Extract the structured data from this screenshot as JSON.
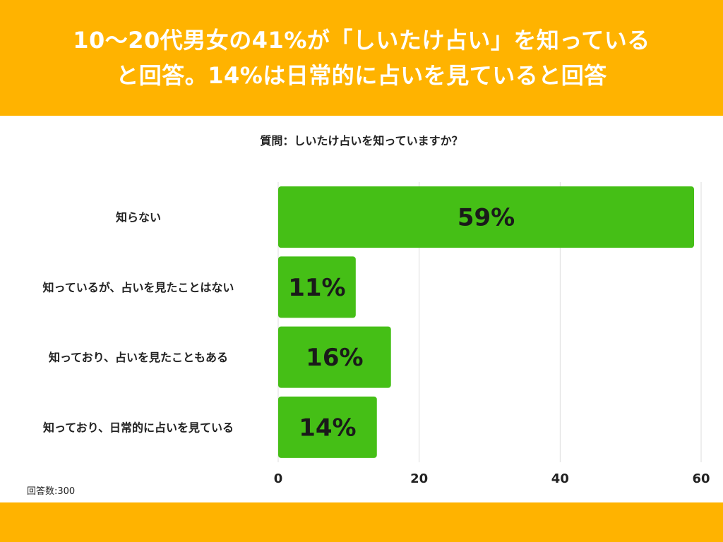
{
  "colors": {
    "banner": "#FFB300",
    "bar": "#45BF16",
    "grid": "#DDDDDD"
  },
  "header": {
    "line1": "10〜20代男女の41%が「しいたけ占い」を知っている",
    "line2": "と回答。14%は日常的に占いを見ていると回答"
  },
  "chart_data": {
    "type": "bar",
    "orientation": "horizontal",
    "title": "質問：しいたけ占いを知っていますか？",
    "categories": [
      "知らない",
      "知っているが、占いを見たことはない",
      "知っており、占いを見たこともある",
      "知っており、日常的に占いを見ている"
    ],
    "values": [
      59,
      11,
      16,
      14
    ],
    "value_labels": [
      "59%",
      "11%",
      "16%",
      "14%"
    ],
    "xlim": [
      0,
      60
    ],
    "xticks": [
      0,
      20,
      40,
      60
    ],
    "grid": true
  },
  "footnote": "回答数:300"
}
